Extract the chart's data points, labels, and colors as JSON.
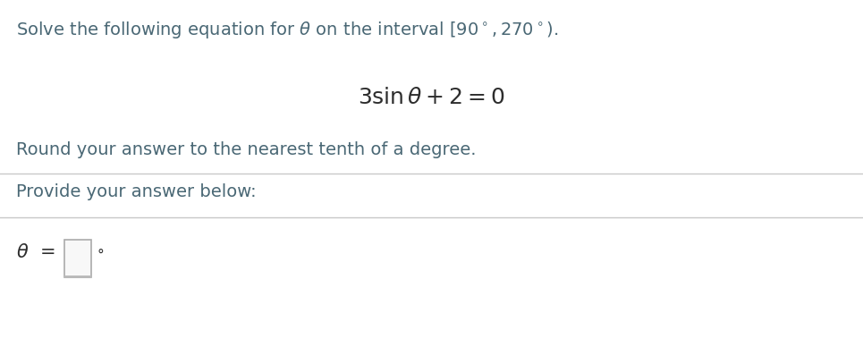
{
  "background_color": "#ffffff",
  "text_color": "#4a6875",
  "equation_color": "#2d2d2d",
  "divider_color": "#c8c8c8",
  "line1": "Solve the following equation for $\\theta$ on the interval $[90^\\circ, 270^\\circ)$.",
  "equation": "$3\\sin\\theta + 2 = 0$",
  "line3": "Round your answer to the nearest tenth of a degree.",
  "line4": "Provide your answer below:",
  "font_size_main": 14,
  "font_size_eq": 18,
  "fig_width": 9.65,
  "fig_height": 3.79,
  "dpi": 100
}
